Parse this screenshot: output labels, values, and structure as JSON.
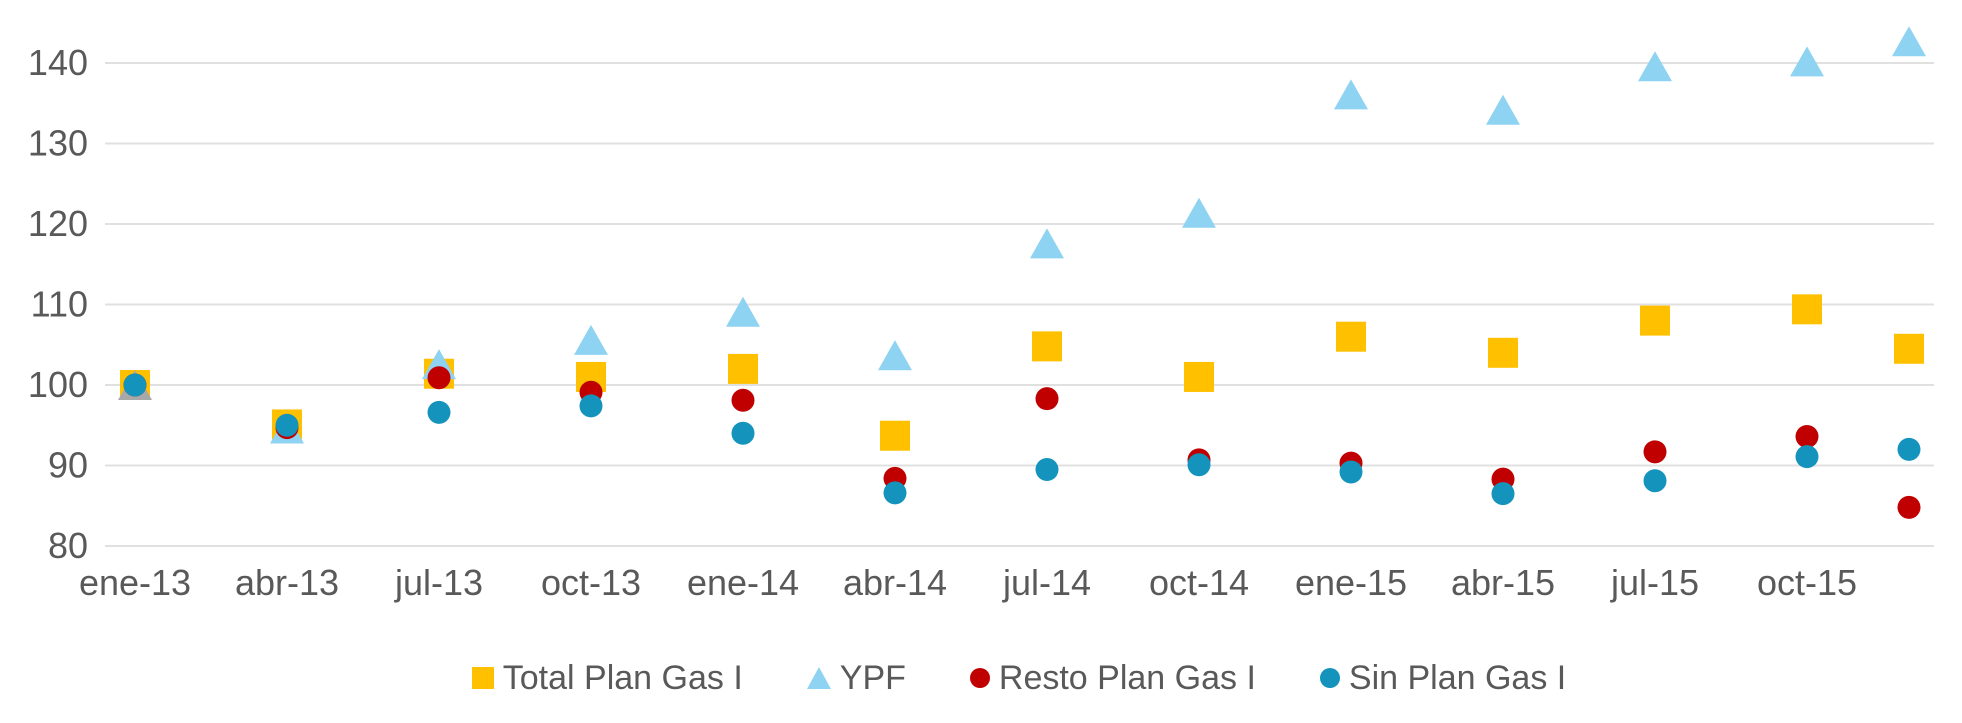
{
  "chart_data": {
    "type": "scatter",
    "title": "",
    "categories": [
      "ene-13",
      "abr-13",
      "jul-13",
      "oct-13",
      "ene-14",
      "abr-14",
      "jul-14",
      "oct-14",
      "ene-15",
      "abr-15",
      "jul-15",
      "oct-15",
      ""
    ],
    "y_axis": {
      "ylim": [
        80,
        140
      ],
      "ticks": [
        140,
        130,
        120,
        110,
        100,
        90,
        80
      ],
      "tick_labels": [
        "140",
        "130",
        "120",
        "110",
        "100",
        "90",
        "80"
      ]
    },
    "grid": "horizontal",
    "legend_position": "bottom",
    "series": [
      {
        "name": "Total Plan Gas I",
        "marker": "square",
        "color": "#FFC000",
        "values": [
          100.0,
          95.1,
          101.4,
          101.0,
          102.0,
          93.7,
          104.8,
          101.0,
          106.0,
          104.0,
          108.0,
          109.4,
          104.5
        ]
      },
      {
        "name": "YPF",
        "marker": "triangle",
        "color": "#8FD3F2",
        "point_color_overrides": [
          {
            "index": 0,
            "color": "#A8A8A8"
          }
        ],
        "values": [
          100.0,
          94.6,
          102.6,
          105.6,
          109.1,
          103.7,
          117.6,
          121.4,
          136.1,
          134.2,
          139.6,
          140.2,
          142.7
        ]
      },
      {
        "name": "Resto Plan Gas I",
        "marker": "circle",
        "color": "#C00000",
        "values": [
          100.0,
          94.7,
          100.9,
          99.1,
          98.1,
          88.4,
          98.3,
          90.7,
          90.3,
          88.3,
          91.7,
          93.6,
          84.8
        ]
      },
      {
        "name": "Sin Plan Gas I",
        "marker": "circle",
        "color": "#1494BC",
        "values": [
          100.0,
          95.0,
          96.6,
          97.4,
          94.0,
          86.6,
          89.5,
          90.1,
          89.2,
          86.5,
          88.1,
          91.1,
          92.0
        ]
      }
    ]
  },
  "colors": {
    "background": "#FFFFFF",
    "grid": "#E0E0E0",
    "axis_text": "#595959"
  }
}
